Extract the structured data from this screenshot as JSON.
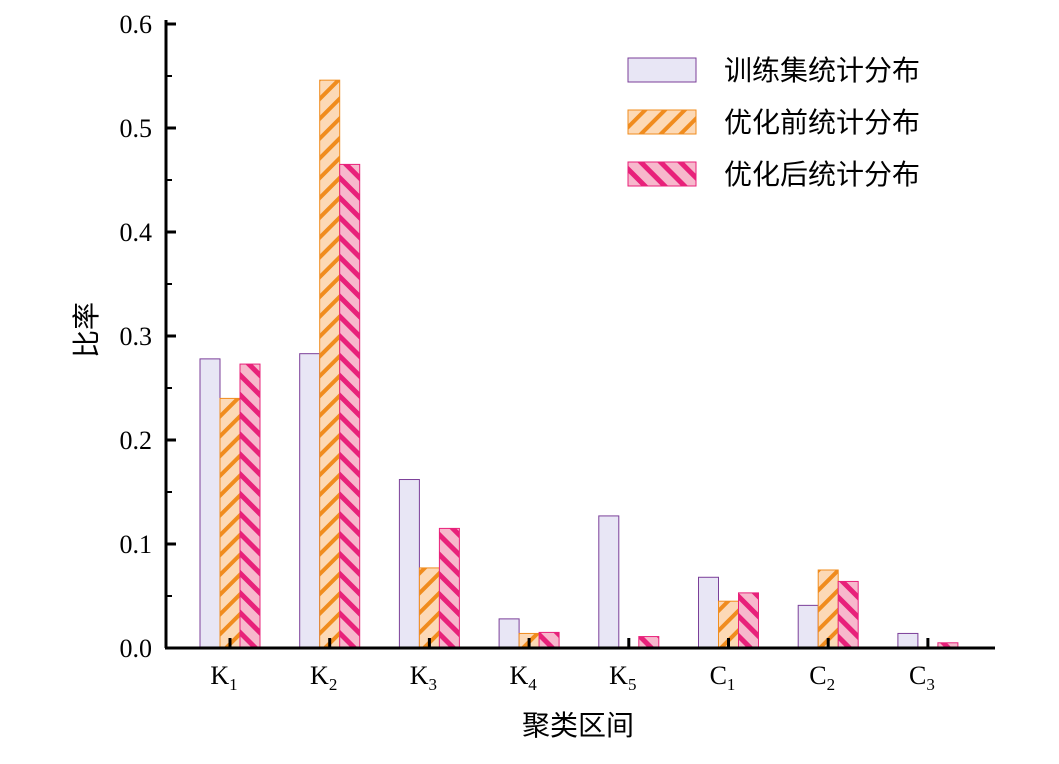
{
  "chart_data": {
    "type": "bar",
    "xlabel": "聚类区间",
    "ylabel": "比率",
    "ylim": [
      0,
      0.6
    ],
    "yticks": [
      "0.0",
      "0.1",
      "0.2",
      "0.3",
      "0.4",
      "0.5",
      "0.6"
    ],
    "categories": [
      {
        "main": "K",
        "sub": "1"
      },
      {
        "main": "K",
        "sub": "2"
      },
      {
        "main": "K",
        "sub": "3"
      },
      {
        "main": "K",
        "sub": "4"
      },
      {
        "main": "K",
        "sub": "5"
      },
      {
        "main": "C",
        "sub": "1"
      },
      {
        "main": "C",
        "sub": "2"
      },
      {
        "main": "C",
        "sub": "3"
      }
    ],
    "series": [
      {
        "name": "训练集统计分布",
        "values": [
          0.278,
          0.283,
          0.162,
          0.028,
          0.127,
          0.068,
          0.041,
          0.014
        ],
        "fill": "#e8e6f5",
        "stroke": "#7b3f99",
        "pattern": "none"
      },
      {
        "name": "优化前统计分布",
        "values": [
          0.24,
          0.546,
          0.077,
          0.014,
          0.001,
          0.045,
          0.075,
          0.001
        ],
        "fill": "#fcd9b6",
        "stroke": "#f08c1e",
        "pattern": "forward-hatch"
      },
      {
        "name": "优化后统计分布",
        "values": [
          0.273,
          0.465,
          0.115,
          0.015,
          0.011,
          0.053,
          0.064,
          0.005
        ],
        "fill": "#f7b8cc",
        "stroke": "#e8217a",
        "pattern": "back-hatch"
      }
    ],
    "legend_position": "top-right",
    "grid": false
  }
}
